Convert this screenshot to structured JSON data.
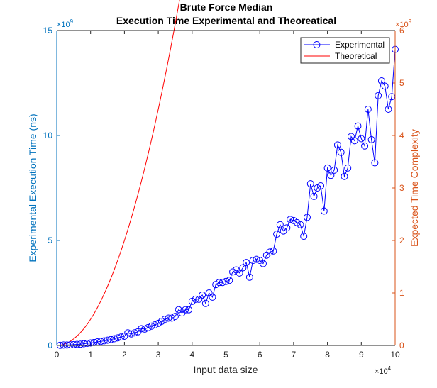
{
  "chart_data": {
    "type": "line",
    "title": "Brute Force Median",
    "subtitle": "Execution Time Experimental and Theoreatical",
    "xlabel": "Input data size",
    "ylabel_left": "Experimental Execution Time (ns)",
    "ylabel_right": "Expected Time Complexity",
    "x_multiplier": "×10",
    "x_multiplier_exp": "4",
    "y_left_multiplier": "×10",
    "y_left_multiplier_exp": "9",
    "y_right_multiplier": "×10",
    "y_right_multiplier_exp": "9",
    "xlim": [
      0,
      10
    ],
    "ylim_left": [
      0,
      15
    ],
    "ylim_right": [
      0,
      6
    ],
    "xticks": [
      0,
      1,
      2,
      3,
      4,
      5,
      6,
      7,
      8,
      9,
      10
    ],
    "yticks_left": [
      0,
      5,
      10,
      15
    ],
    "yticks_right": [
      0,
      1,
      2,
      3,
      4,
      5,
      6
    ],
    "legend_position": "top-right",
    "colors": {
      "left_axis": "#0072BD",
      "right_axis": "#D95319",
      "experimental": "#0000FF",
      "theoretical": "#FF0000"
    },
    "series": [
      {
        "name": "Experimental",
        "axis": "left",
        "marker": "circle",
        "x": [
          0.1,
          0.2,
          0.3,
          0.4,
          0.5,
          0.6,
          0.7,
          0.8,
          0.9,
          1.0,
          1.1,
          1.2,
          1.3,
          1.4,
          1.5,
          1.6,
          1.7,
          1.8,
          1.9,
          2.0,
          2.1,
          2.2,
          2.3,
          2.4,
          2.5,
          2.6,
          2.7,
          2.8,
          2.9,
          3.0,
          3.1,
          3.2,
          3.3,
          3.4,
          3.5,
          3.6,
          3.7,
          3.8,
          3.9,
          4.0,
          4.1,
          4.2,
          4.3,
          4.4,
          4.5,
          4.6,
          4.7,
          4.8,
          4.9,
          5.0,
          5.1,
          5.2,
          5.3,
          5.4,
          5.5,
          5.6,
          5.7,
          5.8,
          5.9,
          6.0,
          6.1,
          6.2,
          6.3,
          6.4,
          6.5,
          6.6,
          6.7,
          6.8,
          6.9,
          7.0,
          7.1,
          7.2,
          7.3,
          7.4,
          7.5,
          7.6,
          7.7,
          7.8,
          7.9,
          8.0,
          8.1,
          8.2,
          8.3,
          8.4,
          8.5,
          8.6,
          8.7,
          8.8,
          8.9,
          9.0,
          9.1,
          9.2,
          9.3,
          9.4,
          9.5,
          9.6,
          9.7,
          9.8,
          9.9,
          10.0
        ],
        "y": [
          0.01,
          0.02,
          0.02,
          0.03,
          0.04,
          0.05,
          0.06,
          0.08,
          0.1,
          0.12,
          0.14,
          0.17,
          0.19,
          0.22,
          0.25,
          0.28,
          0.32,
          0.36,
          0.4,
          0.44,
          0.6,
          0.55,
          0.6,
          0.65,
          0.8,
          0.78,
          0.85,
          0.92,
          0.98,
          1.05,
          1.15,
          1.25,
          1.3,
          1.3,
          1.38,
          1.7,
          1.55,
          1.7,
          1.7,
          2.1,
          2.2,
          2.2,
          2.4,
          2.0,
          2.5,
          2.3,
          2.9,
          3.0,
          3.0,
          3.05,
          3.1,
          3.5,
          3.6,
          3.45,
          3.7,
          3.95,
          3.25,
          4.05,
          4.1,
          4.05,
          3.9,
          4.3,
          4.45,
          4.5,
          5.3,
          5.75,
          5.45,
          5.6,
          6.0,
          5.95,
          5.85,
          5.75,
          5.2,
          6.1,
          7.7,
          7.1,
          7.5,
          7.6,
          6.4,
          8.45,
          8.1,
          8.35,
          9.55,
          9.2,
          8.05,
          8.45,
          9.95,
          9.75,
          10.45,
          9.85,
          9.5,
          11.25,
          9.8,
          8.7,
          11.9,
          12.6,
          12.35,
          11.25,
          11.85,
          14.1
        ]
      },
      {
        "name": "Theoretical",
        "axis": "right",
        "formula": "0.5 * x^2 (x in units of 10^4, y in units of 10^9)"
      }
    ]
  }
}
